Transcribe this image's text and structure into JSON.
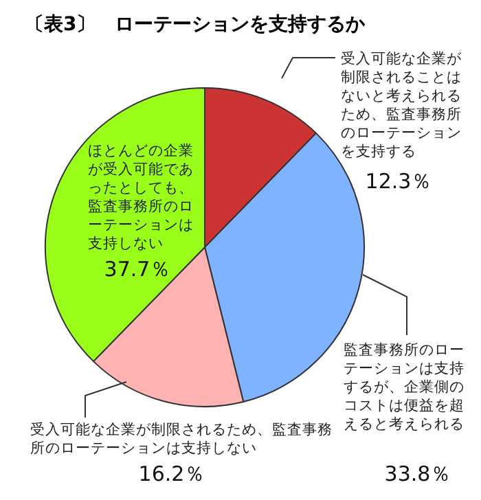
{
  "chart_data": {
    "type": "pie",
    "title": "〔表3〕　ローテーションを支持するか",
    "categories": [
      "受入可能な企業が制限されることはないと考えられるため、監査事務所のローテーションを支持する",
      "監査事務所のローテーションは支持するが、企業側のコストは便益を超えると考えられる",
      "受入可能な企業が制限されるため、監査事務所のローテーションは支持しない",
      "ほとんどの企業が受入可能であったとしても、監査事務所のローテーションは支持しない"
    ],
    "values": [
      12.3,
      33.8,
      16.2,
      37.7
    ],
    "value_labels": [
      "12.3％",
      "33.8％",
      "16.2％",
      "37.7％"
    ],
    "colors": [
      "#cc3333",
      "#80b3ff",
      "#ffb3b3",
      "#99ff1a"
    ]
  }
}
